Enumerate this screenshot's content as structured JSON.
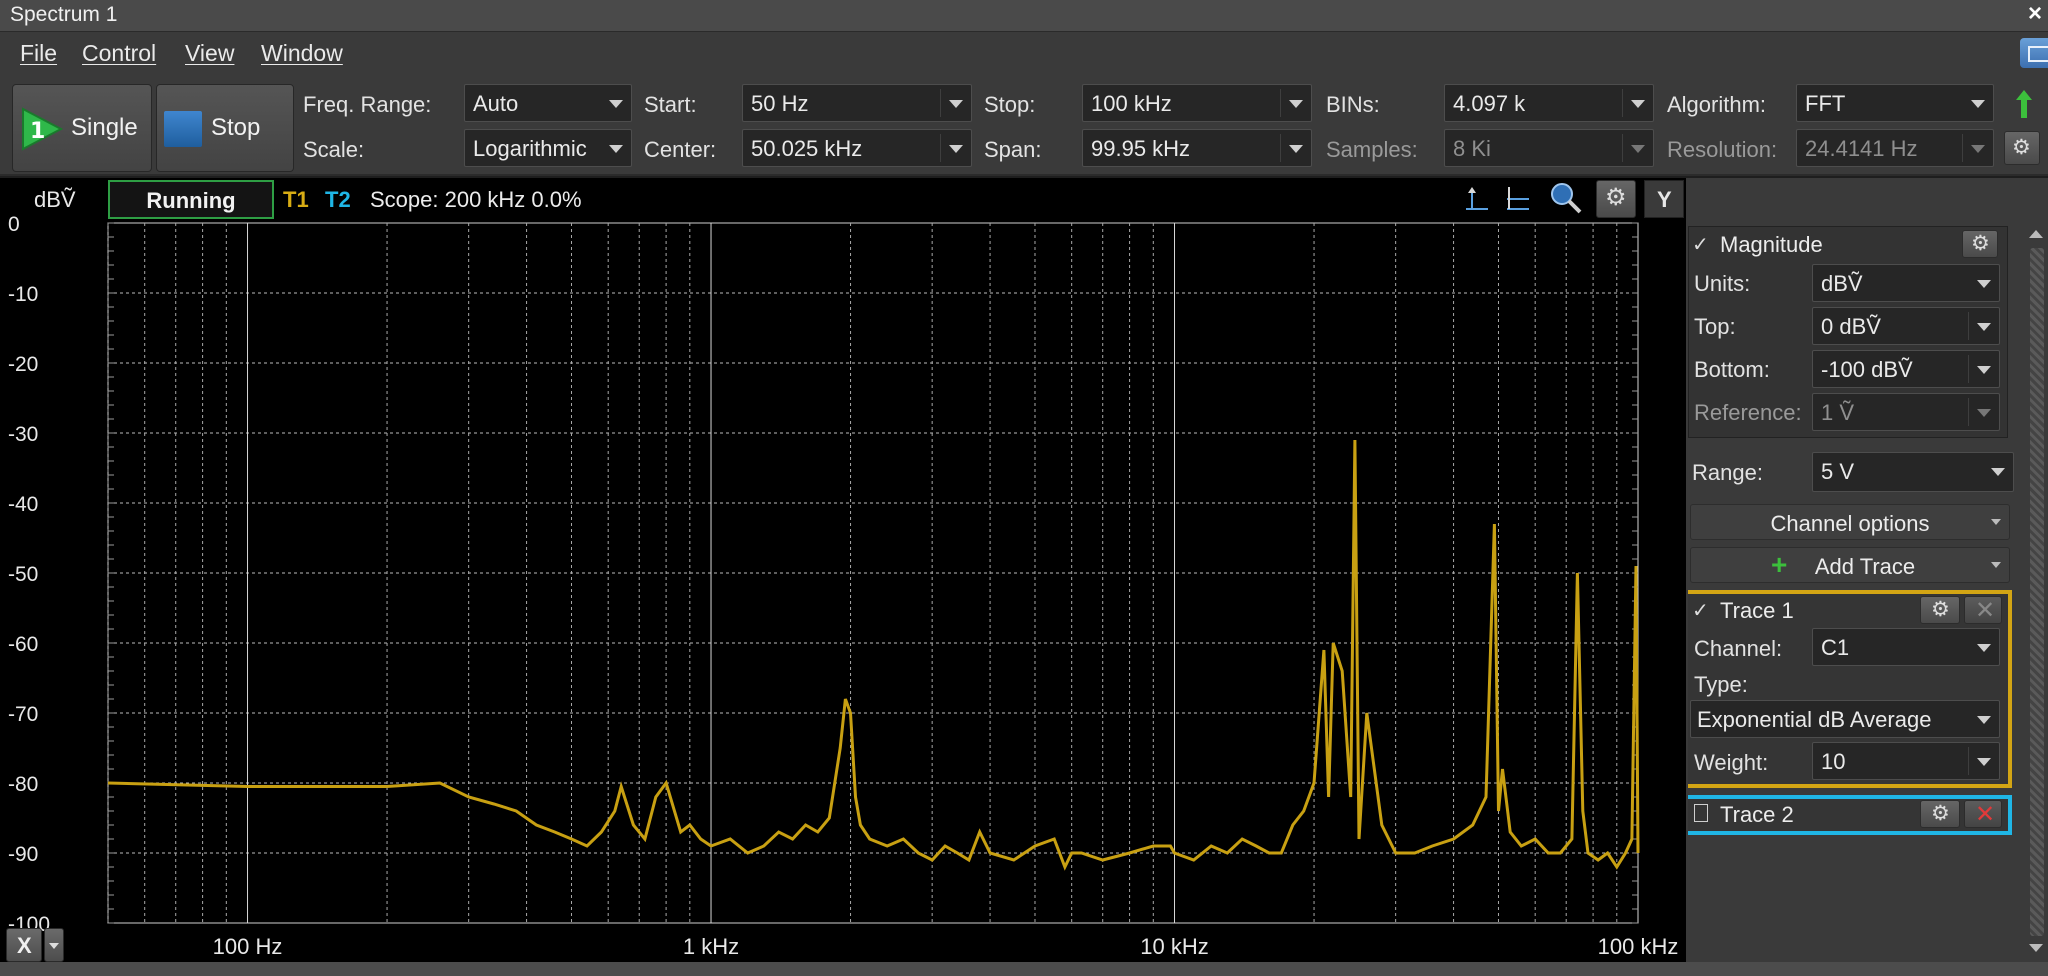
{
  "window": {
    "title": "Spectrum 1",
    "close": "×"
  },
  "menu": {
    "file": "File",
    "control": "Control",
    "view": "View",
    "window": "Window"
  },
  "toolbar": {
    "single_label": "Single",
    "single_badge": "1",
    "stop_label": "Stop",
    "freq_range_label": "Freq. Range:",
    "freq_range_value": "Auto",
    "scale_label": "Scale:",
    "scale_value": "Logarithmic",
    "start_label": "Start:",
    "start_value": "50 Hz",
    "center_label": "Center:",
    "center_value": "50.025 kHz",
    "stop_freq_label": "Stop:",
    "stop_freq_value": "100 kHz",
    "span_label": "Span:",
    "span_value": "99.95 kHz",
    "bins_label": "BINs:",
    "bins_value": "4.097 k",
    "samples_label": "Samples:",
    "samples_value": "8 Ki",
    "algorithm_label": "Algorithm:",
    "algorithm_value": "FFT",
    "resolution_label": "Resolution:",
    "resolution_value": "24.4141 Hz"
  },
  "plot_header": {
    "units": "dBṼ",
    "status": "Running",
    "t1": "T1",
    "t2": "T2",
    "scope": "Scope: 200 kHz 0.0%",
    "y_button": "Y",
    "x_button": "X"
  },
  "colors": {
    "trace1": "#c8a012",
    "trace2": "#1fb6e6",
    "status_border": "#2e9e44",
    "accent_green": "#3cbf3c"
  },
  "panel": {
    "magnitude_label": "Magnitude",
    "units_label": "Units:",
    "units_value": "dBṼ",
    "top_label": "Top:",
    "top_value": "0 dBṼ",
    "bottom_label": "Bottom:",
    "bottom_value": "-100 dBṼ",
    "reference_label": "Reference:",
    "reference_value": "1 Ṽ",
    "range_label": "Range:",
    "range_value": "5 V",
    "channel_options": "Channel options",
    "add_trace": "Add Trace",
    "trace1_label": "Trace 1",
    "channel_label": "Channel:",
    "channel_value": "C1",
    "type_label": "Type:",
    "type_value": "Exponential dB Average",
    "weight_label": "Weight:",
    "weight_value": "10",
    "trace2_label": "Trace 2"
  },
  "chart_data": {
    "type": "line",
    "xscale": "log",
    "xlim": [
      50,
      100000
    ],
    "ylim": [
      -100,
      0
    ],
    "xticks": [
      "100 Hz",
      "1 kHz",
      "10 kHz",
      "100 kHz"
    ],
    "xtick_values": [
      100,
      1000,
      10000,
      100000
    ],
    "yticks": [
      0,
      -10,
      -20,
      -30,
      -40,
      -50,
      -60,
      -70,
      -80,
      -90,
      -100
    ],
    "ylabel": "dBṼ",
    "grid": true,
    "series": [
      {
        "name": "T1",
        "x": [
          50,
          100,
          150,
          200,
          260,
          300,
          340,
          380,
          420,
          460,
          500,
          540,
          580,
          620,
          640,
          680,
          720,
          760,
          800,
          860,
          900,
          950,
          1000,
          1100,
          1200,
          1300,
          1400,
          1500,
          1600,
          1700,
          1800,
          1900,
          1950,
          2000,
          2050,
          2100,
          2200,
          2400,
          2600,
          2800,
          3000,
          3200,
          3400,
          3600,
          3800,
          4000,
          4500,
          5000,
          5500,
          5800,
          6000,
          6300,
          7000,
          8000,
          9000,
          9800,
          10000,
          11000,
          12000,
          13000,
          14000,
          15000,
          16000,
          17000,
          18000,
          19000,
          20000,
          21000,
          21500,
          22000,
          23000,
          24000,
          24500,
          25000,
          26000,
          28000,
          30000,
          33000,
          36000,
          40000,
          44000,
          47000,
          49000,
          50000,
          51000,
          53000,
          56000,
          60000,
          64000,
          68000,
          72000,
          74000,
          76000,
          78000,
          82000,
          86000,
          90000,
          94000,
          97000,
          99000,
          100000
        ],
        "y": [
          -80,
          -80.5,
          -80.5,
          -80.5,
          -80,
          -82,
          -83,
          -84,
          -86,
          -87,
          -88,
          -89,
          -87,
          -84,
          -80.5,
          -86,
          -88,
          -82,
          -80,
          -87,
          -86,
          -88,
          -89,
          -88,
          -90,
          -89,
          -87,
          -88,
          -86,
          -87,
          -85,
          -75,
          -68,
          -70,
          -82,
          -86,
          -88,
          -89,
          -88,
          -90,
          -91,
          -89,
          -90,
          -91,
          -87,
          -90,
          -91,
          -89,
          -88,
          -92,
          -90,
          -90,
          -91,
          -90,
          -89,
          -89,
          -90,
          -91,
          -89,
          -90,
          -88,
          -89,
          -90,
          -90,
          -86,
          -84,
          -80,
          -61,
          -82,
          -60,
          -64,
          -82,
          -31,
          -88,
          -70,
          -86,
          -90,
          -90,
          -89,
          -88,
          -86,
          -82,
          -43,
          -84,
          -78,
          -87,
          -89,
          -88,
          -90,
          -90,
          -88,
          -50,
          -84,
          -90,
          -91,
          -90,
          -92,
          -90,
          -88,
          -49,
          -90
        ]
      }
    ]
  }
}
